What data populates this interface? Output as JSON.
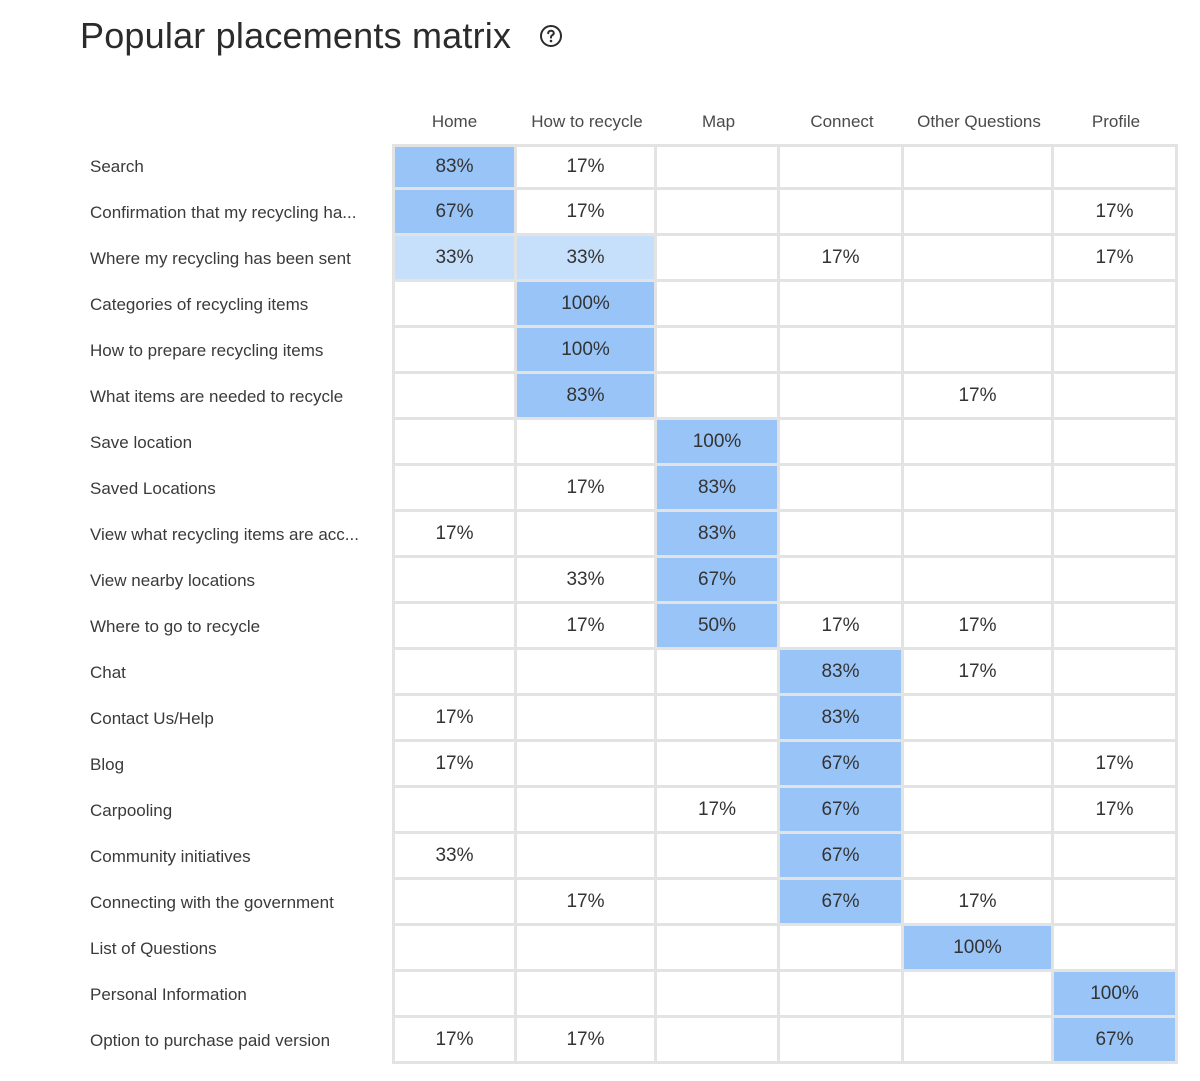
{
  "title": "Popular placements matrix",
  "help_icon": "question-circle-icon",
  "colors": {
    "strong": "#99c4f8",
    "light": "#c6dffb",
    "grid": "#e3e3e3"
  },
  "columns": [
    "Home",
    "How to recycle",
    "Map",
    "Connect",
    "Other Questions",
    "Profile"
  ],
  "rows": [
    {
      "label": "Search",
      "cells": [
        {
          "text": "83%",
          "fill": "strong"
        },
        {
          "text": "17%",
          "fill": ""
        },
        {
          "text": "",
          "fill": ""
        },
        {
          "text": "",
          "fill": ""
        },
        {
          "text": "",
          "fill": ""
        },
        {
          "text": "",
          "fill": ""
        }
      ]
    },
    {
      "label": "Confirmation that my recycling ha...",
      "cells": [
        {
          "text": "67%",
          "fill": "strong"
        },
        {
          "text": "17%",
          "fill": ""
        },
        {
          "text": "",
          "fill": ""
        },
        {
          "text": "",
          "fill": ""
        },
        {
          "text": "",
          "fill": ""
        },
        {
          "text": "17%",
          "fill": ""
        }
      ]
    },
    {
      "label": "Where my recycling has been sent",
      "cells": [
        {
          "text": "33%",
          "fill": "light"
        },
        {
          "text": "33%",
          "fill": "light"
        },
        {
          "text": "",
          "fill": ""
        },
        {
          "text": "17%",
          "fill": ""
        },
        {
          "text": "",
          "fill": ""
        },
        {
          "text": "17%",
          "fill": ""
        }
      ]
    },
    {
      "label": "Categories of recycling items",
      "cells": [
        {
          "text": "",
          "fill": ""
        },
        {
          "text": "100%",
          "fill": "strong"
        },
        {
          "text": "",
          "fill": ""
        },
        {
          "text": "",
          "fill": ""
        },
        {
          "text": "",
          "fill": ""
        },
        {
          "text": "",
          "fill": ""
        }
      ]
    },
    {
      "label": "How to prepare recycling items",
      "cells": [
        {
          "text": "",
          "fill": ""
        },
        {
          "text": "100%",
          "fill": "strong"
        },
        {
          "text": "",
          "fill": ""
        },
        {
          "text": "",
          "fill": ""
        },
        {
          "text": "",
          "fill": ""
        },
        {
          "text": "",
          "fill": ""
        }
      ]
    },
    {
      "label": "What items are needed to recycle",
      "cells": [
        {
          "text": "",
          "fill": ""
        },
        {
          "text": "83%",
          "fill": "strong"
        },
        {
          "text": "",
          "fill": ""
        },
        {
          "text": "",
          "fill": ""
        },
        {
          "text": "17%",
          "fill": ""
        },
        {
          "text": "",
          "fill": ""
        }
      ]
    },
    {
      "label": "Save location",
      "cells": [
        {
          "text": "",
          "fill": ""
        },
        {
          "text": "",
          "fill": ""
        },
        {
          "text": "100%",
          "fill": "strong"
        },
        {
          "text": "",
          "fill": ""
        },
        {
          "text": "",
          "fill": ""
        },
        {
          "text": "",
          "fill": ""
        }
      ]
    },
    {
      "label": "Saved Locations",
      "cells": [
        {
          "text": "",
          "fill": ""
        },
        {
          "text": "17%",
          "fill": ""
        },
        {
          "text": "83%",
          "fill": "strong"
        },
        {
          "text": "",
          "fill": ""
        },
        {
          "text": "",
          "fill": ""
        },
        {
          "text": "",
          "fill": ""
        }
      ]
    },
    {
      "label": "View what recycling items are acc...",
      "cells": [
        {
          "text": "17%",
          "fill": ""
        },
        {
          "text": "",
          "fill": ""
        },
        {
          "text": "83%",
          "fill": "strong"
        },
        {
          "text": "",
          "fill": ""
        },
        {
          "text": "",
          "fill": ""
        },
        {
          "text": "",
          "fill": ""
        }
      ]
    },
    {
      "label": "View nearby locations",
      "cells": [
        {
          "text": "",
          "fill": ""
        },
        {
          "text": "33%",
          "fill": ""
        },
        {
          "text": "67%",
          "fill": "strong"
        },
        {
          "text": "",
          "fill": ""
        },
        {
          "text": "",
          "fill": ""
        },
        {
          "text": "",
          "fill": ""
        }
      ]
    },
    {
      "label": "Where to go to recycle",
      "cells": [
        {
          "text": "",
          "fill": ""
        },
        {
          "text": "17%",
          "fill": ""
        },
        {
          "text": "50%",
          "fill": "strong"
        },
        {
          "text": "17%",
          "fill": ""
        },
        {
          "text": "17%",
          "fill": ""
        },
        {
          "text": "",
          "fill": ""
        }
      ]
    },
    {
      "label": "Chat",
      "cells": [
        {
          "text": "",
          "fill": ""
        },
        {
          "text": "",
          "fill": ""
        },
        {
          "text": "",
          "fill": ""
        },
        {
          "text": "83%",
          "fill": "strong"
        },
        {
          "text": "17%",
          "fill": ""
        },
        {
          "text": "",
          "fill": ""
        }
      ]
    },
    {
      "label": "Contact Us/Help",
      "cells": [
        {
          "text": "17%",
          "fill": ""
        },
        {
          "text": "",
          "fill": ""
        },
        {
          "text": "",
          "fill": ""
        },
        {
          "text": "83%",
          "fill": "strong"
        },
        {
          "text": "",
          "fill": ""
        },
        {
          "text": "",
          "fill": ""
        }
      ]
    },
    {
      "label": "Blog",
      "cells": [
        {
          "text": "17%",
          "fill": ""
        },
        {
          "text": "",
          "fill": ""
        },
        {
          "text": "",
          "fill": ""
        },
        {
          "text": "67%",
          "fill": "strong"
        },
        {
          "text": "",
          "fill": ""
        },
        {
          "text": "17%",
          "fill": ""
        }
      ]
    },
    {
      "label": "Carpooling",
      "cells": [
        {
          "text": "",
          "fill": ""
        },
        {
          "text": "",
          "fill": ""
        },
        {
          "text": "17%",
          "fill": ""
        },
        {
          "text": "67%",
          "fill": "strong"
        },
        {
          "text": "",
          "fill": ""
        },
        {
          "text": "17%",
          "fill": ""
        }
      ]
    },
    {
      "label": "Community initiatives",
      "cells": [
        {
          "text": "33%",
          "fill": ""
        },
        {
          "text": "",
          "fill": ""
        },
        {
          "text": "",
          "fill": ""
        },
        {
          "text": "67%",
          "fill": "strong"
        },
        {
          "text": "",
          "fill": ""
        },
        {
          "text": "",
          "fill": ""
        }
      ]
    },
    {
      "label": "Connecting with the government",
      "cells": [
        {
          "text": "",
          "fill": ""
        },
        {
          "text": "17%",
          "fill": ""
        },
        {
          "text": "",
          "fill": ""
        },
        {
          "text": "67%",
          "fill": "strong"
        },
        {
          "text": "17%",
          "fill": ""
        },
        {
          "text": "",
          "fill": ""
        }
      ]
    },
    {
      "label": "List of Questions",
      "cells": [
        {
          "text": "",
          "fill": ""
        },
        {
          "text": "",
          "fill": ""
        },
        {
          "text": "",
          "fill": ""
        },
        {
          "text": "",
          "fill": ""
        },
        {
          "text": "100%",
          "fill": "strong"
        },
        {
          "text": "",
          "fill": ""
        }
      ]
    },
    {
      "label": "Personal Information",
      "cells": [
        {
          "text": "",
          "fill": ""
        },
        {
          "text": "",
          "fill": ""
        },
        {
          "text": "",
          "fill": ""
        },
        {
          "text": "",
          "fill": ""
        },
        {
          "text": "",
          "fill": ""
        },
        {
          "text": "100%",
          "fill": "strong"
        }
      ]
    },
    {
      "label": "Option to purchase paid version",
      "cells": [
        {
          "text": "17%",
          "fill": ""
        },
        {
          "text": "17%",
          "fill": ""
        },
        {
          "text": "",
          "fill": ""
        },
        {
          "text": "",
          "fill": ""
        },
        {
          "text": "",
          "fill": ""
        },
        {
          "text": "67%",
          "fill": "strong"
        }
      ]
    }
  ]
}
